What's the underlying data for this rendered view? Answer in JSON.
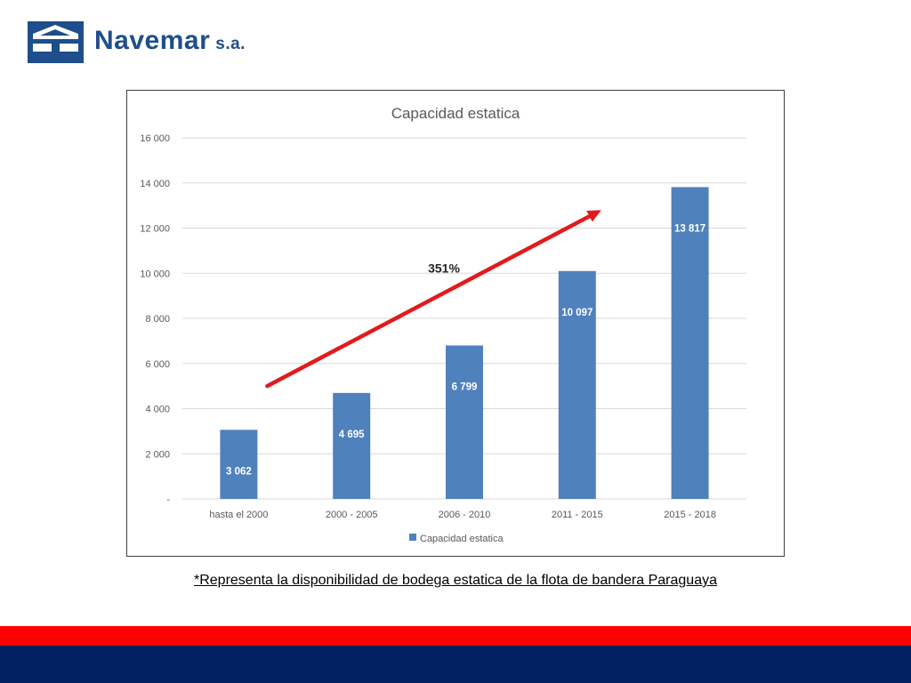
{
  "brand": {
    "name": "Navemar",
    "suffix": "s.a.",
    "color": "#1e4e8c"
  },
  "footnote": "*Representa la disponibilidad de bodega estatica de la flota de bandera Paraguaya",
  "colors": {
    "bar": "#4f81bd",
    "arrow": "#e31a1c",
    "band_red": "#ff0000",
    "band_navy": "#002060"
  },
  "chart_data": {
    "type": "bar",
    "title": "Capacidad estatica",
    "categories": [
      "hasta el 2000",
      "2000 - 2005",
      "2006 - 2010",
      "2011 - 2015",
      "2015 - 2018"
    ],
    "series": [
      {
        "name": "Capacidad estatica",
        "values": [
          3062,
          4695,
          6799,
          10097,
          13817
        ]
      }
    ],
    "data_labels": [
      "3 062",
      "4 695",
      "6 799",
      "10 097",
      "13 817"
    ],
    "ylim": [
      0,
      16000
    ],
    "yticks": [
      0,
      2000,
      4000,
      6000,
      8000,
      10000,
      12000,
      14000,
      16000
    ],
    "ytick_labels": [
      "-",
      "2 000",
      "4 000",
      "6 000",
      "8 000",
      "10 000",
      "12 000",
      "14 000",
      "16 000"
    ],
    "grid": true,
    "legend": "bottom",
    "annotation": {
      "text": "351%",
      "arrow": "trend-up"
    }
  }
}
